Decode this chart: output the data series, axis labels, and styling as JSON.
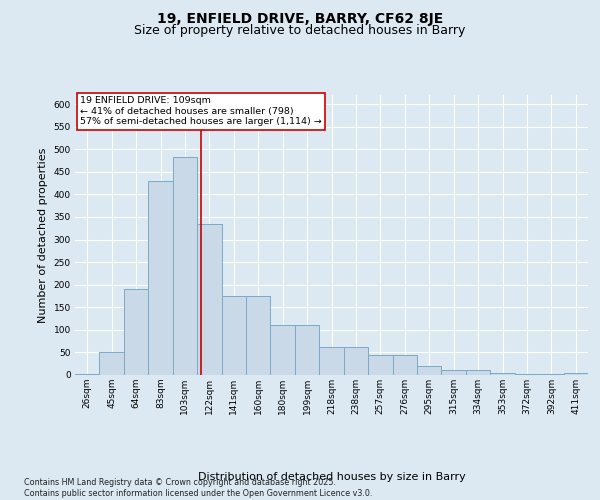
{
  "title1": "19, ENFIELD DRIVE, BARRY, CF62 8JE",
  "title2": "Size of property relative to detached houses in Barry",
  "xlabel": "Distribution of detached houses by size in Barry",
  "ylabel": "Number of detached properties",
  "bars": [
    {
      "label": "26sqm",
      "value": 3
    },
    {
      "label": "45sqm",
      "value": 50
    },
    {
      "label": "64sqm",
      "value": 190
    },
    {
      "label": "83sqm",
      "value": 430
    },
    {
      "label": "103sqm",
      "value": 483
    },
    {
      "label": "122sqm",
      "value": 335
    },
    {
      "label": "141sqm",
      "value": 175
    },
    {
      "label": "160sqm",
      "value": 175
    },
    {
      "label": "180sqm",
      "value": 110
    },
    {
      "label": "199sqm",
      "value": 110
    },
    {
      "label": "218sqm",
      "value": 62
    },
    {
      "label": "238sqm",
      "value": 62
    },
    {
      "label": "257sqm",
      "value": 44
    },
    {
      "label": "276sqm",
      "value": 44
    },
    {
      "label": "295sqm",
      "value": 20
    },
    {
      "label": "315sqm",
      "value": 10
    },
    {
      "label": "334sqm",
      "value": 10
    },
    {
      "label": "353sqm",
      "value": 5
    },
    {
      "label": "372sqm",
      "value": 3
    },
    {
      "label": "392sqm",
      "value": 2
    },
    {
      "label": "411sqm",
      "value": 4
    }
  ],
  "bar_color": "#c9d9e8",
  "bar_edge_color": "#7aaac8",
  "bar_edge_width": 0.7,
  "background_color": "#dce9f2",
  "plot_bg_color": "#dce9f2",
  "grid_color": "#ffffff",
  "red_line_x": 4.65,
  "red_line_color": "#cc0000",
  "annotation_box_text": "19 ENFIELD DRIVE: 109sqm\n← 41% of detached houses are smaller (798)\n57% of semi-detached houses are larger (1,114) →",
  "annotation_box_color": "#cc0000",
  "ylim": [
    0,
    620
  ],
  "yticks": [
    0,
    50,
    100,
    150,
    200,
    250,
    300,
    350,
    400,
    450,
    500,
    550,
    600
  ],
  "footnote": "Contains HM Land Registry data © Crown copyright and database right 2025.\nContains public sector information licensed under the Open Government Licence v3.0.",
  "title_fontsize": 10,
  "subtitle_fontsize": 9,
  "tick_fontsize": 6.5,
  "label_fontsize": 8,
  "footnote_fontsize": 5.8
}
